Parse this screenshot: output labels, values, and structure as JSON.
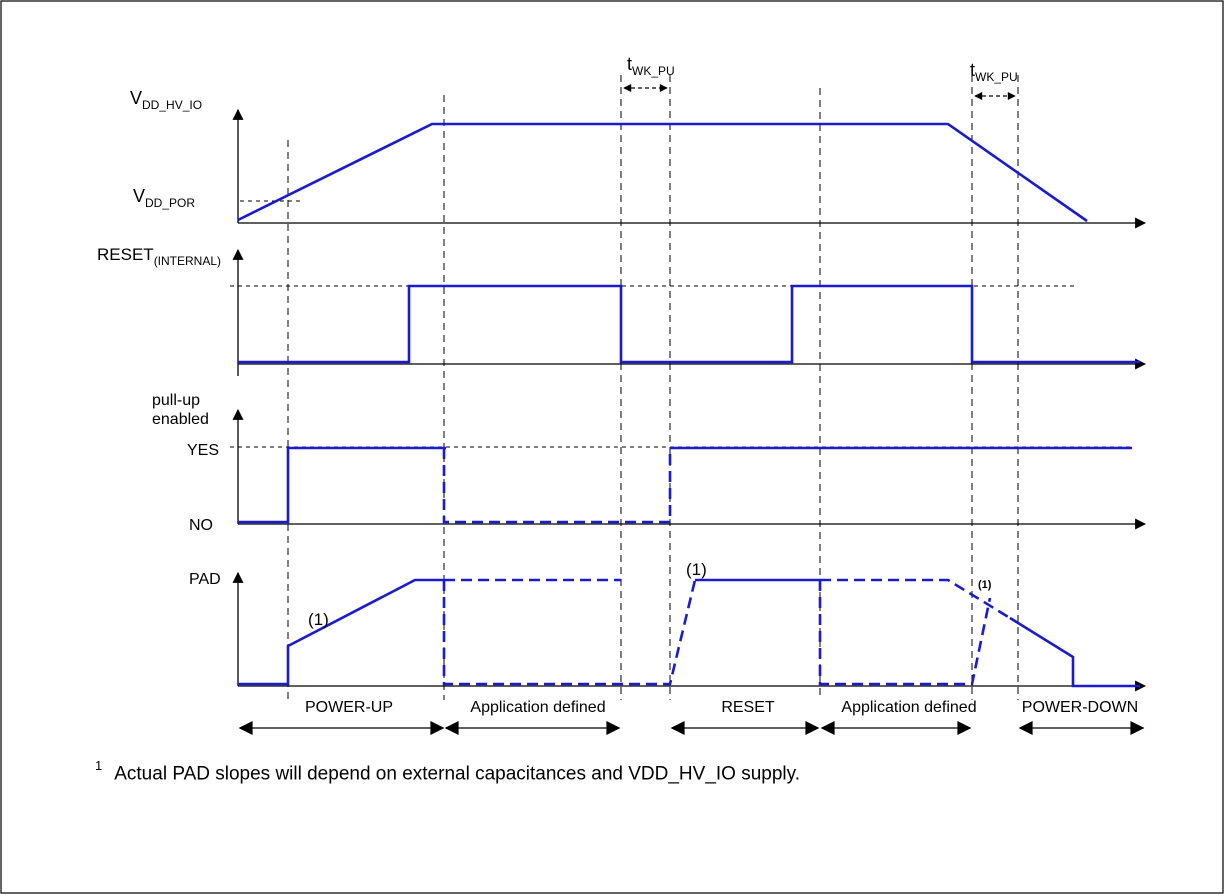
{
  "signals": {
    "vdd_hv_io": {
      "main": "V",
      "sub": "DD_HV_IO"
    },
    "vdd_por": {
      "main": "V",
      "sub": "DD_POR"
    },
    "reset": {
      "main": "RESET",
      "sub": "(INTERNAL)"
    },
    "pullup_line1": "pull-up",
    "pullup_line2": "enabled",
    "yes": "YES",
    "no": "NO",
    "pad": "PAD"
  },
  "timing": {
    "twk_pu_1": {
      "main": "t",
      "sub": "WK_PU"
    },
    "twk_pu_2": {
      "main": "t",
      "sub": "WK_PU"
    }
  },
  "annotations": {
    "note_pad_rise": "(1)",
    "note_pad_reset": "(1)",
    "note_pad_down": "(1)"
  },
  "phases": [
    "POWER-UP",
    "Application defined",
    "RESET",
    "Application defined",
    "POWER-DOWN"
  ],
  "footnote": {
    "marker": "1",
    "text": "Actual PAD slopes will depend on external capacitances and VDD_HV_IO supply."
  },
  "colors": {
    "waveform": "#1a1ad0",
    "frame": "#000000"
  }
}
